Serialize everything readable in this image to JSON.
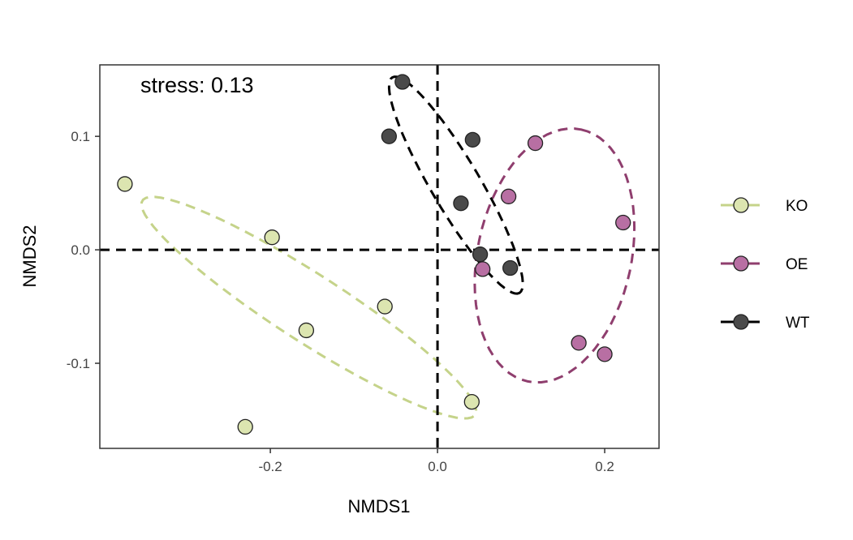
{
  "chart_data": {
    "type": "scatter",
    "xlabel": "NMDS1",
    "ylabel": "NMDS2",
    "xlim": [
      -0.404,
      0.265
    ],
    "ylim": [
      -0.175,
      0.163
    ],
    "xticks": [
      -0.2,
      0.0,
      0.2
    ],
    "xtick_labels": [
      "-0.2",
      "0.0",
      "0.2"
    ],
    "yticks": [
      -0.1,
      0.0,
      0.1
    ],
    "ytick_labels": [
      "-0.1",
      "0.0",
      "0.1"
    ],
    "grid": false,
    "annotation": "stress: 0.13",
    "reference_lines": {
      "x": 0,
      "y": 0
    },
    "legend_position": "right",
    "series": [
      {
        "name": "KO",
        "fill": "#dce5b0",
        "line": "#c5d38a",
        "points": [
          [
            -0.374,
            0.058
          ],
          [
            -0.198,
            0.011
          ],
          [
            -0.157,
            -0.071
          ],
          [
            -0.063,
            -0.05
          ],
          [
            -0.23,
            -0.156
          ],
          [
            0.041,
            -0.134
          ]
        ],
        "ellipse": {
          "center": [
            -0.154,
            -0.051
          ],
          "axis1": [
            0.196,
            -0.082
          ],
          "axis2": [
            -0.041,
            0.053
          ]
        }
      },
      {
        "name": "OE",
        "fill": "#b86fa3",
        "line": "#8f3e6e",
        "points": [
          [
            0.117,
            0.094
          ],
          [
            0.085,
            0.047
          ],
          [
            0.222,
            0.024
          ],
          [
            0.054,
            -0.017
          ],
          [
            0.169,
            -0.082
          ],
          [
            0.2,
            -0.092
          ]
        ],
        "ellipse": {
          "center": [
            0.14,
            -0.005
          ],
          "axis1": [
            0.032,
            0.111
          ],
          "axis2": [
            0.09,
            -0.014
          ]
        }
      },
      {
        "name": "WT",
        "fill": "#4a4a4a",
        "line": "#000000",
        "points": [
          [
            -0.042,
            0.148
          ],
          [
            -0.058,
            0.1
          ],
          [
            0.042,
            0.097
          ],
          [
            0.028,
            0.041
          ],
          [
            0.051,
            -0.004
          ],
          [
            0.087,
            -0.016
          ]
        ],
        "ellipse": {
          "center": [
            0.022,
            0.057
          ],
          "axis1": [
            0.076,
            -0.095
          ],
          "axis2": [
            -0.025,
            -0.011
          ]
        }
      }
    ]
  }
}
